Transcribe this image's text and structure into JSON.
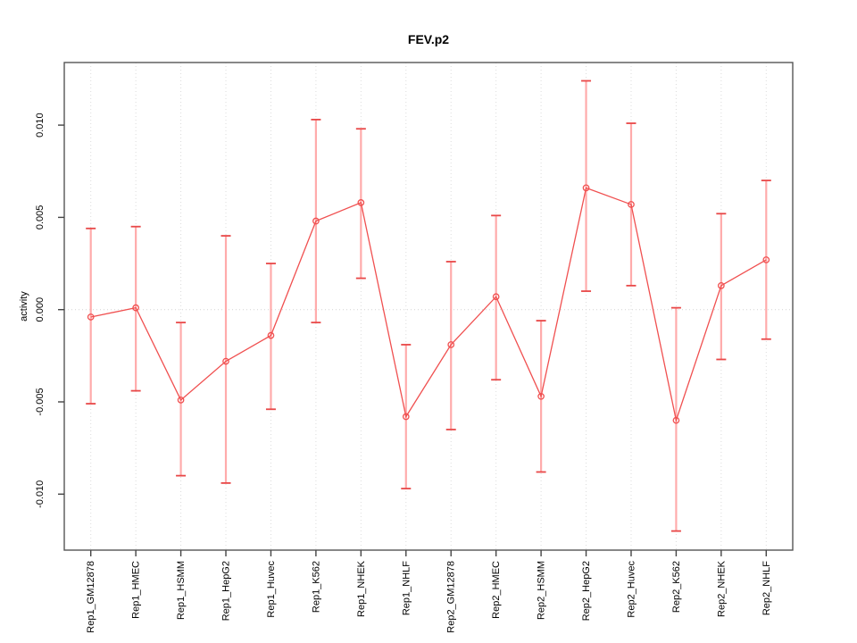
{
  "chart_data": {
    "type": "line",
    "title": "FEV.p2",
    "xlabel": "",
    "ylabel": "activity",
    "legend": "none",
    "grid": {
      "vertical_dotted_at_each_category": true,
      "horizontal_dotted_at_zero": true
    },
    "point_style": "open-circle",
    "categories": [
      "Rep1_GM12878",
      "Rep1_HMEC",
      "Rep1_HSMM",
      "Rep1_HepG2",
      "Rep1_Huvec",
      "Rep1_K562",
      "Rep1_NHEK",
      "Rep1_NHLF",
      "Rep2_GM12878",
      "Rep2_HMEC",
      "Rep2_HSMM",
      "Rep2_HepG2",
      "Rep2_Huvec",
      "Rep2_K562",
      "Rep2_NHEK",
      "Rep2_NHLF"
    ],
    "series": [
      {
        "name": "activity",
        "values": [
          -0.0004,
          0.0001,
          -0.0049,
          -0.0028,
          -0.0014,
          0.0048,
          0.0058,
          -0.0058,
          -0.0019,
          0.0007,
          -0.0047,
          0.0066,
          0.0057,
          -0.006,
          0.0013,
          0.0027
        ],
        "error_low": [
          -0.0051,
          -0.0044,
          -0.009,
          -0.0094,
          -0.0054,
          -0.0007,
          0.0017,
          -0.0097,
          -0.0065,
          -0.0038,
          -0.0088,
          0.001,
          0.0013,
          -0.012,
          -0.0027,
          -0.0016
        ],
        "error_high": [
          0.0044,
          0.0045,
          -0.0007,
          0.004,
          0.0025,
          0.0103,
          0.0098,
          -0.0019,
          0.0026,
          0.0051,
          -0.0006,
          0.0124,
          0.0101,
          0.0001,
          0.0052,
          0.007
        ]
      }
    ],
    "y_ticks": [
      {
        "value": 0.01,
        "label": "0.010"
      },
      {
        "value": 0.005,
        "label": "0.005"
      },
      {
        "value": 0.0,
        "label": "0.000"
      },
      {
        "value": -0.005,
        "label": "-0.005"
      },
      {
        "value": -0.01,
        "label": "-0.010"
      }
    ],
    "ylim": [
      -0.013,
      0.0134
    ],
    "colors": {
      "line": "#f05050",
      "point": "#f05050",
      "error_bar": "#ffabab",
      "error_cap": "#e84848",
      "grid": "#dcdcdc",
      "zero_line": "#d4d4d4",
      "axis": "#555555",
      "tick": "#444444",
      "text": "#000000"
    }
  }
}
